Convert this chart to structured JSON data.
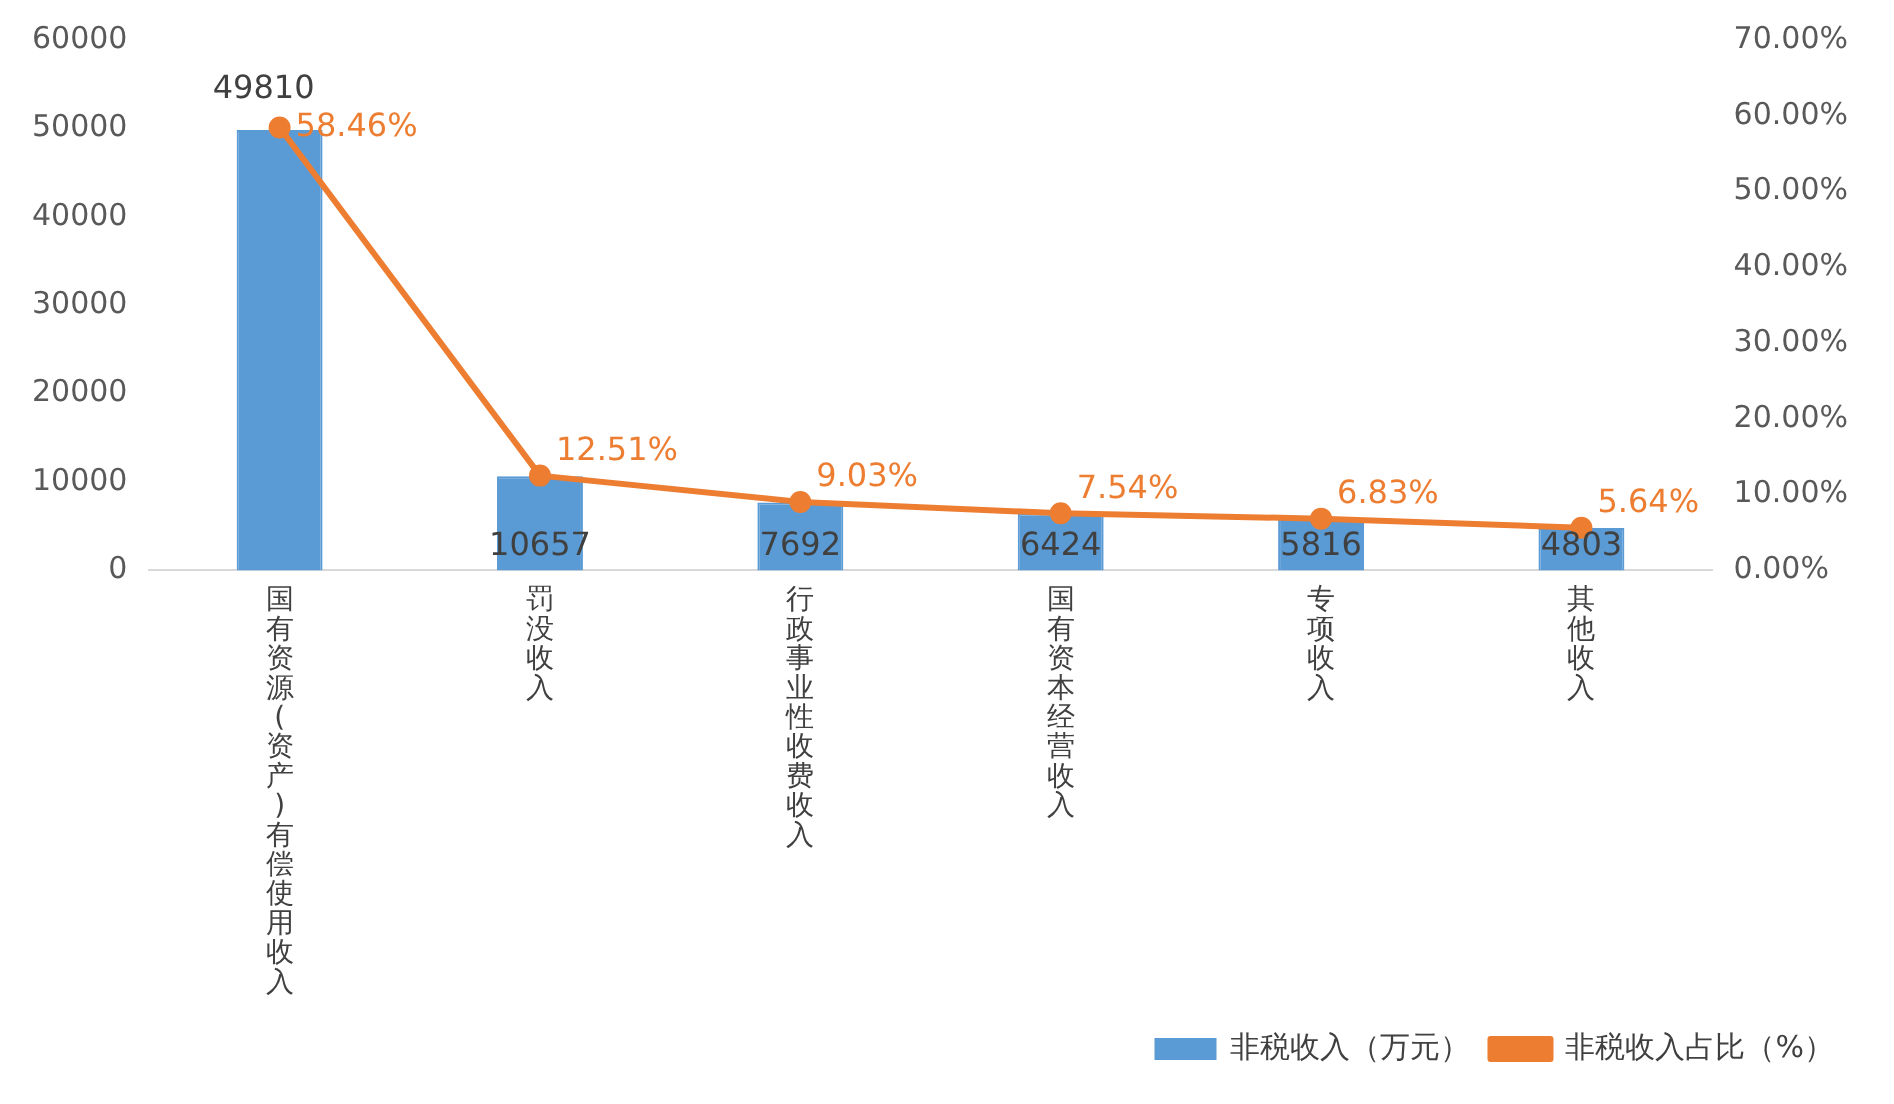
{
  "chart_data": {
    "type": "bar",
    "categories": [
      "国有资源(资产)有偿使用收入",
      "罚没收入",
      "行政事业性收费收入",
      "国有资本经营收入",
      "专项收入",
      "其他收入"
    ],
    "series": [
      {
        "name": "非税收入（万元）",
        "color": "#5b9bd5",
        "values": [
          49810,
          10657,
          7692,
          6424,
          5816,
          4803
        ]
      },
      {
        "name": "非税收入占比（%）",
        "type": "line",
        "axis": "y2",
        "color": "#ed7d31",
        "values": [
          58.46,
          12.51,
          9.03,
          7.54,
          6.83,
          5.64
        ],
        "value_labels": [
          "58.46%",
          "12.51%",
          "9.03%",
          "7.54%",
          "6.83%",
          "5.64%"
        ]
      }
    ],
    "ylim": [
      0,
      60000
    ],
    "yticks": [
      0,
      10000,
      20000,
      30000,
      40000,
      50000,
      60000
    ],
    "y2lim": [
      0,
      70
    ],
    "y2ticks": [
      {
        "value": 0,
        "label": "0.00%"
      },
      {
        "value": 10,
        "label": "10.00%"
      },
      {
        "value": 20,
        "label": "20.00%"
      },
      {
        "value": 30,
        "label": "30.00%"
      },
      {
        "value": 40,
        "label": "40.00%"
      },
      {
        "value": 50,
        "label": "50.00%"
      },
      {
        "value": 60,
        "label": "60.00%"
      },
      {
        "value": 70,
        "label": "70.00%"
      }
    ],
    "data_labels": true,
    "legend": "bottom right",
    "grid": false,
    "marker": "circle"
  }
}
